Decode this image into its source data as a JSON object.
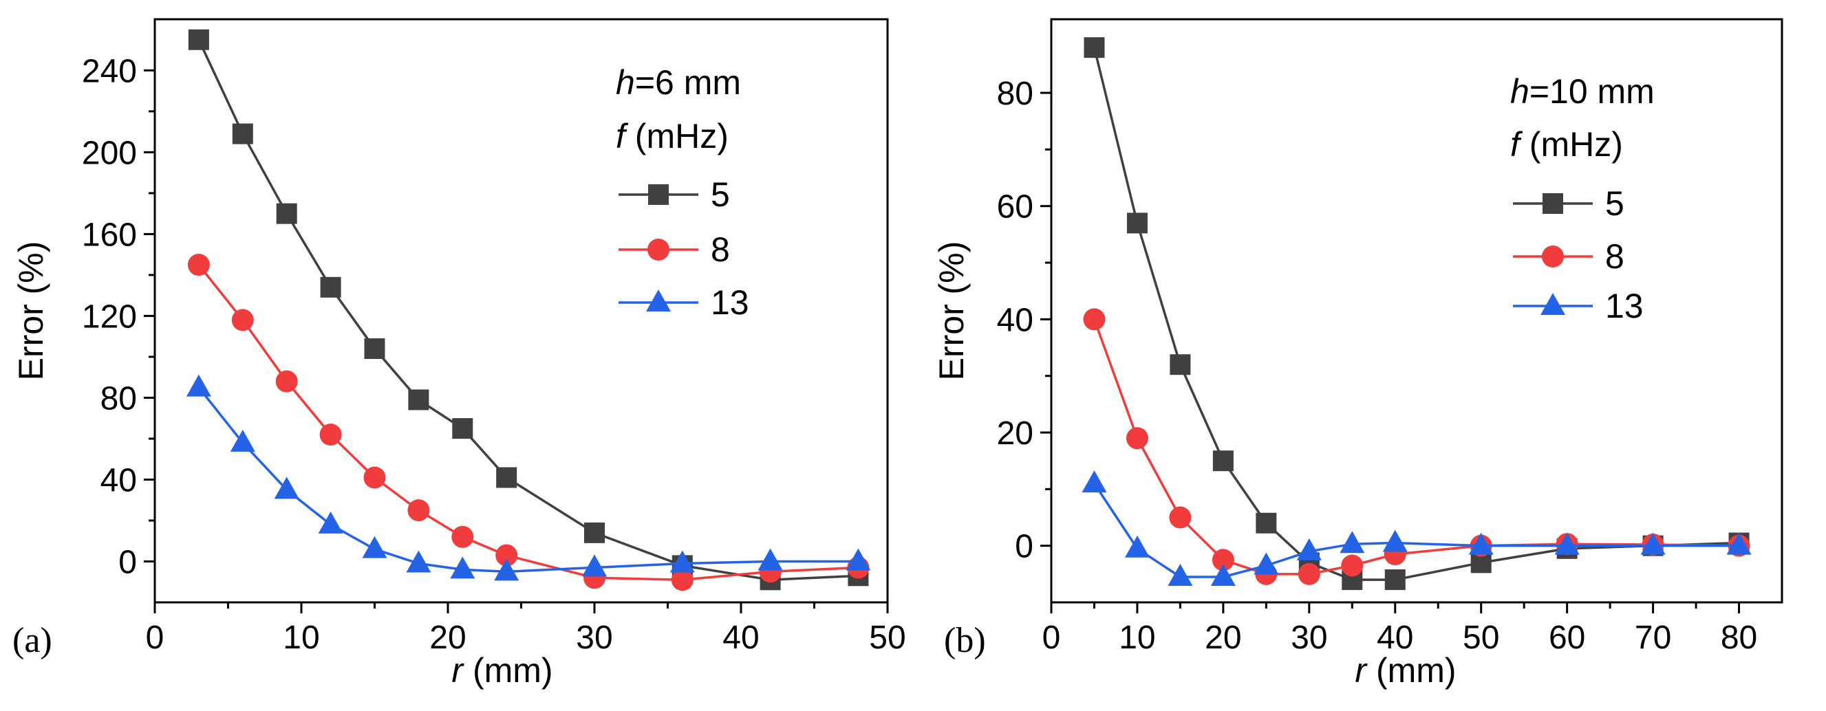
{
  "chart_data": [
    {
      "type": "line",
      "panel_label": "(a)",
      "xlabel_var": "r",
      "xlabel_unit": " (mm)",
      "ylabel": "Error (%)",
      "xlim": [
        0,
        50
      ],
      "ylim": [
        -20,
        265
      ],
      "xticks": [
        0,
        10,
        20,
        30,
        40,
        50
      ],
      "yticks": [
        0,
        40,
        80,
        120,
        160,
        200,
        240
      ],
      "legend_title_var": "h",
      "legend_title_rest": "=6 mm",
      "legend_subtitle_var": "f",
      "legend_subtitle_rest": " (mHz)",
      "legend_position": "top-right",
      "series": [
        {
          "name": "5",
          "color": "#404040",
          "marker": "square",
          "x": [
            3,
            6,
            9,
            12,
            15,
            18,
            21,
            24,
            30,
            36,
            42,
            48
          ],
          "y": [
            255,
            209,
            170,
            134,
            104,
            79,
            65,
            41,
            14,
            -2,
            -9,
            -7
          ]
        },
        {
          "name": "8",
          "color": "#f03c3c",
          "marker": "circle",
          "x": [
            3,
            6,
            9,
            12,
            15,
            18,
            21,
            24,
            30,
            36,
            42,
            48
          ],
          "y": [
            145,
            118,
            88,
            62,
            41,
            25,
            12,
            3,
            -8,
            -9,
            -5,
            -3
          ]
        },
        {
          "name": "13",
          "color": "#2563e6",
          "marker": "triangle",
          "x": [
            3,
            6,
            9,
            12,
            15,
            18,
            21,
            24,
            30,
            36,
            42,
            48
          ],
          "y": [
            85,
            58,
            35,
            18,
            6,
            -1,
            -4,
            -5,
            -3,
            -1,
            0,
            0
          ]
        }
      ]
    },
    {
      "type": "line",
      "panel_label": "(b)",
      "xlabel_var": "r",
      "xlabel_unit": " (mm)",
      "ylabel": "Error (%)",
      "xlim": [
        0,
        85
      ],
      "ylim": [
        -10,
        93
      ],
      "xticks": [
        0,
        10,
        20,
        30,
        40,
        50,
        60,
        70,
        80
      ],
      "yticks": [
        0,
        20,
        40,
        60,
        80
      ],
      "legend_title_var": "h",
      "legend_title_rest": "=10 mm",
      "legend_subtitle_var": "f",
      "legend_subtitle_rest": " (mHz)",
      "legend_position": "top-right",
      "series": [
        {
          "name": "5",
          "color": "#404040",
          "marker": "square",
          "x": [
            5,
            10,
            15,
            20,
            25,
            30,
            35,
            40,
            50,
            60,
            70,
            80
          ],
          "y": [
            88,
            57,
            32,
            15,
            4,
            -3,
            -6,
            -6,
            -3,
            -0.5,
            0,
            0.5
          ]
        },
        {
          "name": "8",
          "color": "#f03c3c",
          "marker": "circle",
          "x": [
            5,
            10,
            15,
            20,
            25,
            30,
            35,
            40,
            50,
            60,
            70,
            80
          ],
          "y": [
            40,
            19,
            5,
            -2.5,
            -5,
            -5,
            -3.5,
            -1.5,
            0,
            0.3,
            0.2,
            0
          ]
        },
        {
          "name": "13",
          "color": "#2563e6",
          "marker": "triangle",
          "x": [
            5,
            10,
            15,
            20,
            25,
            30,
            35,
            40,
            50,
            60,
            70,
            80
          ],
          "y": [
            11,
            -0.5,
            -5.5,
            -5.5,
            -3.5,
            -1,
            0.3,
            0.5,
            0,
            0,
            0,
            0
          ]
        }
      ]
    }
  ]
}
